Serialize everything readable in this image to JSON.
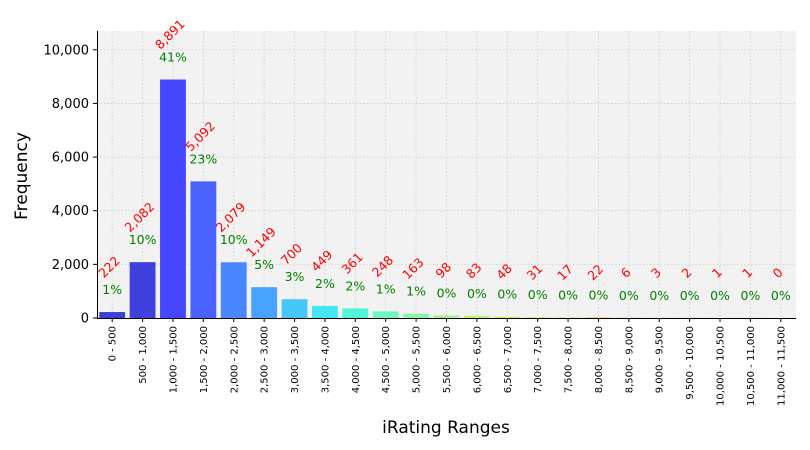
{
  "chart_data": {
    "type": "bar",
    "xlabel": "iRating Ranges",
    "ylabel": "Frequency",
    "ylim": [
      0,
      10700
    ],
    "yticks": [
      0,
      2000,
      4000,
      6000,
      8000,
      10000
    ],
    "ytick_labels": [
      "0",
      "2,000",
      "4,000",
      "6,000",
      "8,000",
      "10,000"
    ],
    "grid": true,
    "categories": [
      "0 - 500",
      "500 - 1,000",
      "1,000 - 1,500",
      "1,500 - 2,000",
      "2,000 - 2,500",
      "2,500 - 3,000",
      "3,000 - 3,500",
      "3,500 - 4,000",
      "4,000 - 4,500",
      "4,500 - 5,000",
      "5,000 - 5,500",
      "5,500 - 6,000",
      "6,000 - 6,500",
      "6,500 - 7,000",
      "7,000 - 7,500",
      "7,500 - 8,000",
      "8,000 - 8,500",
      "8,500 - 9,000",
      "9,000 - 9,500",
      "9,500 - 10,000",
      "10,000 - 10,500",
      "10,500 - 11,000",
      "11,000 - 11,500"
    ],
    "values": [
      222,
      2082,
      8891,
      5092,
      2079,
      1149,
      700,
      449,
      361,
      248,
      163,
      98,
      83,
      48,
      31,
      17,
      22,
      6,
      3,
      2,
      1,
      1,
      0
    ],
    "count_labels": [
      "222",
      "2,082",
      "8,891",
      "5,092",
      "2,079",
      "1,149",
      "700",
      "449",
      "361",
      "248",
      "163",
      "98",
      "83",
      "48",
      "31",
      "17",
      "22",
      "6",
      "3",
      "2",
      "1",
      "1",
      "0"
    ],
    "percent_labels": [
      "1%",
      "10%",
      "41%",
      "23%",
      "10%",
      "5%",
      "3%",
      "2%",
      "2%",
      "1%",
      "1%",
      "0%",
      "0%",
      "0%",
      "0%",
      "0%",
      "0%",
      "0%",
      "0%",
      "0%",
      "0%",
      "0%",
      "0%"
    ],
    "bar_colors": [
      "#3f3fd6",
      "#4040dc",
      "#4646ff",
      "#4a62ff",
      "#4a86ff",
      "#47a3ff",
      "#47c6fa",
      "#45e6f5",
      "#52f5d6",
      "#6ff7c0",
      "#8af5a6",
      "#a3f58e",
      "#b9f577",
      "#cdf264",
      "#e1f052",
      "#ede546",
      "#f0cc3e",
      "#f0b23a",
      "#ef9634",
      "#ec7a2e",
      "#e85e2a",
      "#e24226",
      "#dd2e24"
    ],
    "count_label_color": "#ff0000",
    "percent_label_color": "#008000",
    "plot_background": "#f2f2f2"
  }
}
